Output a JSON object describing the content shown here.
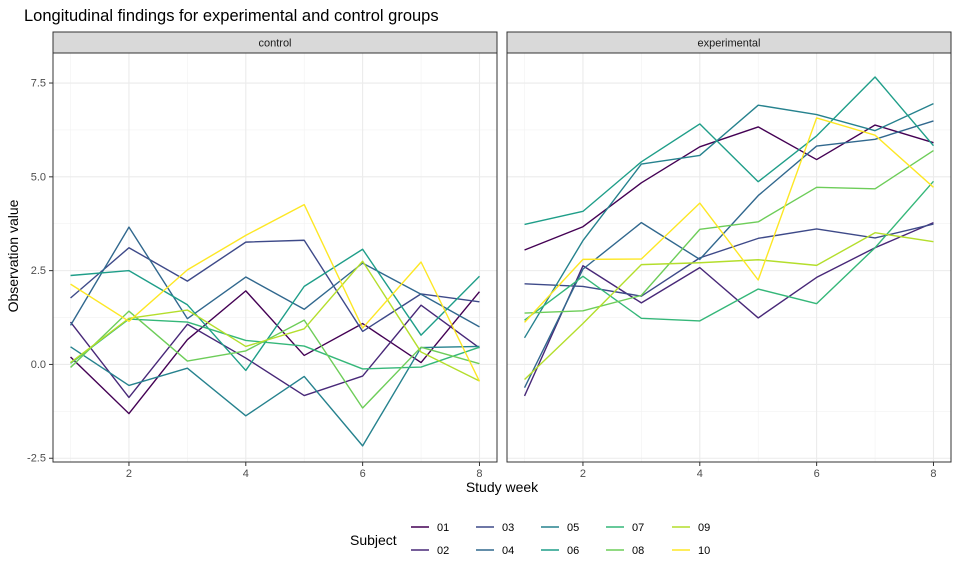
{
  "chart_data": {
    "type": "line",
    "title": "Longitudinal findings for experimental and control groups",
    "xlabel": "Study week",
    "ylabel": "Observation value",
    "xlim": [
      0.7,
      8.3
    ],
    "ylim": [
      -2.6,
      8.3
    ],
    "xticks": [
      2,
      4,
      6,
      8
    ],
    "yticks": [
      -2.5,
      0.0,
      2.5,
      5.0,
      7.5
    ],
    "ytick_labels": [
      "-2.5",
      "0.0",
      "2.5",
      "5.0",
      "7.5"
    ],
    "grid": true,
    "legend": {
      "title": "Subject",
      "placement": "bottom",
      "entries": [
        "01",
        "02",
        "03",
        "04",
        "05",
        "06",
        "07",
        "08",
        "09",
        "10"
      ]
    },
    "colors": {
      "01": "#440154",
      "02": "#482878",
      "03": "#3E4A89",
      "04": "#31688E",
      "05": "#26828E",
      "06": "#1F9E89",
      "07": "#35B779",
      "08": "#6DCD59",
      "09": "#B4DE2C",
      "10": "#FDE725"
    },
    "x": [
      1,
      2,
      3,
      4,
      5,
      6,
      7,
      8
    ],
    "panels": [
      {
        "strip": "control",
        "series": [
          {
            "name": "01",
            "values": [
              0.2,
              -1.31,
              0.66,
              1.96,
              0.24,
              1.09,
              0.05,
              1.94
            ]
          },
          {
            "name": "02",
            "values": [
              1.13,
              -0.88,
              1.07,
              0.17,
              -0.83,
              -0.31,
              1.58,
              0.44
            ]
          },
          {
            "name": "03",
            "values": [
              1.77,
              3.11,
              2.22,
              3.26,
              3.31,
              0.88,
              1.88,
              1.67
            ]
          },
          {
            "name": "04",
            "values": [
              1.04,
              3.66,
              1.22,
              2.33,
              1.47,
              2.7,
              1.87,
              1.0
            ]
          },
          {
            "name": "05",
            "values": [
              0.47,
              -0.56,
              -0.1,
              -1.37,
              -0.32,
              -2.17,
              0.45,
              0.48
            ]
          },
          {
            "name": "06",
            "values": [
              2.37,
              2.5,
              1.59,
              -0.16,
              2.08,
              3.07,
              0.78,
              2.35
            ]
          },
          {
            "name": "07",
            "values": [
              0.03,
              1.21,
              1.13,
              0.64,
              0.49,
              -0.12,
              -0.07,
              0.46
            ]
          },
          {
            "name": "08",
            "values": [
              -0.08,
              1.42,
              0.09,
              0.36,
              1.18,
              -1.16,
              0.46,
              0.02
            ]
          },
          {
            "name": "09",
            "values": [
              0.05,
              1.23,
              1.45,
              0.48,
              0.95,
              2.75,
              0.33,
              -0.44
            ]
          },
          {
            "name": "10",
            "values": [
              2.14,
              1.15,
              2.52,
              3.44,
              4.26,
              0.97,
              2.73,
              -0.45
            ]
          }
        ]
      },
      {
        "strip": "experimental",
        "series": [
          {
            "name": "01",
            "values": [
              3.05,
              3.67,
              4.84,
              5.8,
              6.33,
              5.46,
              6.38,
              5.91
            ]
          },
          {
            "name": "02",
            "values": [
              -0.84,
              2.63,
              1.64,
              2.58,
              1.24,
              2.32,
              3.11,
              3.78
            ]
          },
          {
            "name": "03",
            "values": [
              2.15,
              2.08,
              1.82,
              2.84,
              3.36,
              3.61,
              3.37,
              3.74
            ]
          },
          {
            "name": "04",
            "values": [
              -0.62,
              2.54,
              3.78,
              2.8,
              4.5,
              5.82,
              6.0,
              6.49
            ]
          },
          {
            "name": "05",
            "values": [
              0.71,
              3.3,
              5.34,
              5.57,
              6.91,
              6.66,
              6.23,
              6.95
            ]
          },
          {
            "name": "06",
            "values": [
              3.73,
              4.08,
              5.4,
              6.41,
              4.87,
              6.09,
              7.66,
              5.83
            ]
          },
          {
            "name": "07",
            "values": [
              1.18,
              2.35,
              1.23,
              1.16,
              2.01,
              1.62,
              3.11,
              4.88
            ]
          },
          {
            "name": "08",
            "values": [
              1.37,
              1.43,
              1.84,
              3.6,
              3.8,
              4.72,
              4.68,
              5.7
            ]
          },
          {
            "name": "09",
            "values": [
              -0.4,
              1.09,
              2.66,
              2.71,
              2.79,
              2.64,
              3.51,
              3.27
            ]
          },
          {
            "name": "10",
            "values": [
              1.12,
              2.8,
              2.81,
              4.3,
              2.25,
              6.57,
              6.11,
              4.72
            ]
          }
        ]
      }
    ]
  }
}
